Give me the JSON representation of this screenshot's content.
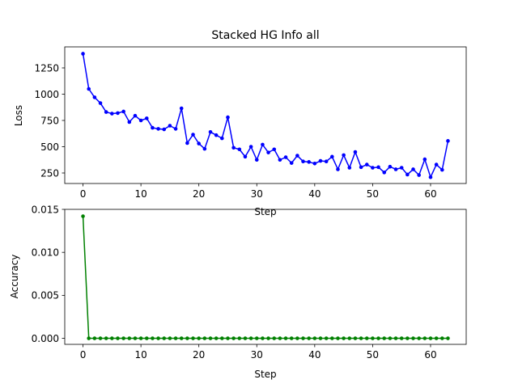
{
  "chart_data": [
    {
      "type": "line",
      "title": "Stacked HG Info all",
      "xlabel": "Step",
      "ylabel": "Loss",
      "xlim": [
        -3.15,
        66.15
      ],
      "ylim": [
        150,
        1450
      ],
      "xticks": [
        0,
        10,
        20,
        30,
        40,
        50,
        60
      ],
      "yticks": [
        250,
        500,
        750,
        1000,
        1250
      ],
      "ytick_labels": [
        "250",
        "500",
        "750",
        "1000",
        "1250"
      ],
      "grid": false,
      "color": "#0000ff",
      "marker": "circle",
      "x": [
        0,
        1,
        2,
        3,
        4,
        5,
        6,
        7,
        8,
        9,
        10,
        11,
        12,
        13,
        14,
        15,
        16,
        17,
        18,
        19,
        20,
        21,
        22,
        23,
        24,
        25,
        26,
        27,
        28,
        29,
        30,
        31,
        32,
        33,
        34,
        35,
        36,
        37,
        38,
        39,
        40,
        41,
        42,
        43,
        44,
        45,
        46,
        47,
        48,
        49,
        50,
        51,
        52,
        53,
        54,
        55,
        56,
        57,
        58,
        59,
        60,
        61,
        62,
        63
      ],
      "y": [
        1385,
        1050,
        970,
        915,
        830,
        815,
        820,
        835,
        735,
        795,
        750,
        770,
        680,
        670,
        665,
        700,
        670,
        865,
        535,
        615,
        530,
        480,
        640,
        610,
        580,
        780,
        490,
        475,
        405,
        500,
        375,
        520,
        445,
        475,
        375,
        400,
        345,
        415,
        360,
        355,
        340,
        365,
        360,
        405,
        285,
        420,
        300,
        450,
        305,
        330,
        300,
        305,
        255,
        310,
        285,
        300,
        235,
        285,
        230,
        380,
        210,
        330,
        280,
        555
      ]
    },
    {
      "type": "line",
      "title": "",
      "xlabel": "Step",
      "ylabel": "Accuracy",
      "xlim": [
        -3.15,
        66.15
      ],
      "ylim": [
        -0.0007,
        0.015
      ],
      "xticks": [
        0,
        10,
        20,
        30,
        40,
        50,
        60
      ],
      "yticks": [
        0,
        0.005,
        0.01,
        0.015
      ],
      "ytick_labels": [
        "0.000",
        "0.005",
        "0.010",
        "0.015"
      ],
      "grid": false,
      "color": "#008000",
      "marker": "circle",
      "x": [
        0,
        1,
        2,
        3,
        4,
        5,
        6,
        7,
        8,
        9,
        10,
        11,
        12,
        13,
        14,
        15,
        16,
        17,
        18,
        19,
        20,
        21,
        22,
        23,
        24,
        25,
        26,
        27,
        28,
        29,
        30,
        31,
        32,
        33,
        34,
        35,
        36,
        37,
        38,
        39,
        40,
        41,
        42,
        43,
        44,
        45,
        46,
        47,
        48,
        49,
        50,
        51,
        52,
        53,
        54,
        55,
        56,
        57,
        58,
        59,
        60,
        61,
        62,
        63
      ],
      "y": [
        0.0142,
        0,
        0,
        0,
        0,
        0,
        0,
        0,
        0,
        0,
        0,
        0,
        0,
        0,
        0,
        0,
        0,
        0,
        0,
        0,
        0,
        0,
        0,
        0,
        0,
        0,
        0,
        0,
        0,
        0,
        0,
        0,
        0,
        0,
        0,
        0,
        0,
        0,
        0,
        0,
        0,
        0,
        0,
        0,
        0,
        0,
        0,
        0,
        0,
        0,
        0,
        0,
        0,
        0,
        0,
        0,
        0,
        0,
        0,
        0,
        0,
        0,
        0,
        0
      ]
    }
  ]
}
